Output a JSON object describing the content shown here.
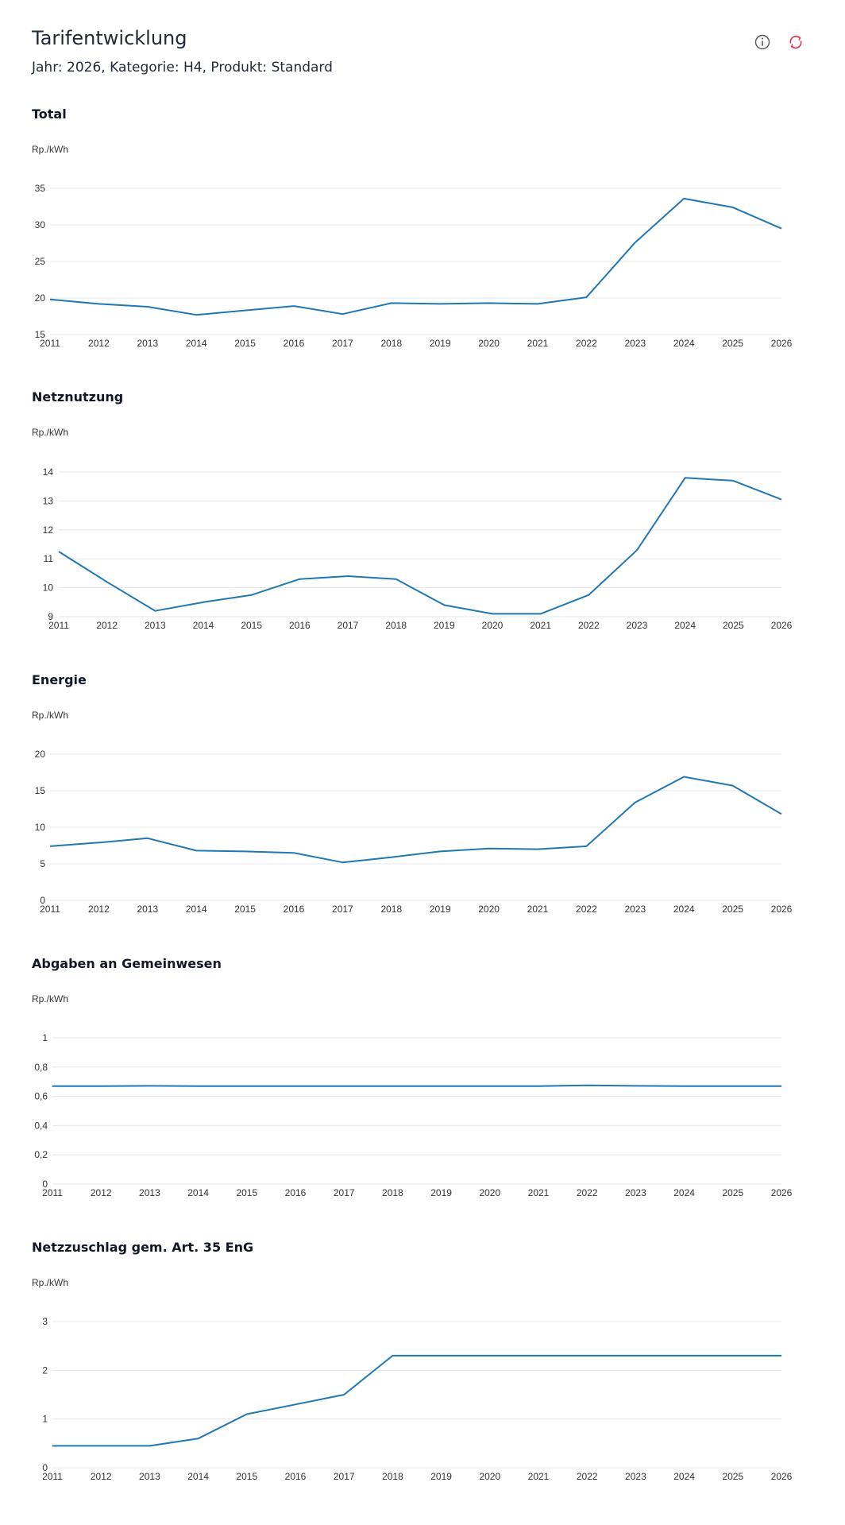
{
  "header": {
    "title": "Tarifentwicklung",
    "subtitle": "Jahr: 2026, Kategorie: H4, Produkt: Standard"
  },
  "toolbar": {
    "info_icon": "info-icon",
    "refresh_icon": "refresh-icon",
    "refresh_color": "#e0334d"
  },
  "colors": {
    "series": "#1f77b4",
    "grid": "#e5e7eb"
  },
  "chart_data": [
    {
      "type": "line",
      "title": "Total",
      "ylabel": "Rp./kWh",
      "xlabel": "",
      "x": [
        "2011",
        "2012",
        "2013",
        "2014",
        "2015",
        "2016",
        "2017",
        "2018",
        "2019",
        "2020",
        "2021",
        "2022",
        "2023",
        "2024",
        "2025",
        "2026"
      ],
      "values": [
        19.8,
        19.2,
        18.8,
        17.7,
        18.3,
        18.9,
        17.8,
        19.3,
        19.2,
        19.3,
        19.2,
        20.1,
        27.6,
        33.6,
        32.4,
        29.5
      ],
      "ylim": [
        15,
        35
      ],
      "yticks": [
        "15",
        "20",
        "25",
        "30",
        "35"
      ],
      "ytick_values": [
        15,
        20,
        25,
        30,
        35
      ],
      "grid": true
    },
    {
      "type": "line",
      "title": "Netznutzung",
      "ylabel": "Rp./kWh",
      "xlabel": "",
      "x": [
        "2011",
        "2012",
        "2013",
        "2014",
        "2015",
        "2016",
        "2017",
        "2018",
        "2019",
        "2020",
        "2021",
        "2022",
        "2023",
        "2024",
        "2025",
        "2026"
      ],
      "values": [
        11.25,
        10.2,
        9.2,
        9.5,
        9.75,
        10.3,
        10.4,
        10.3,
        9.4,
        9.1,
        9.1,
        9.75,
        11.3,
        13.8,
        13.7,
        13.05
      ],
      "ylim": [
        9,
        14
      ],
      "yticks": [
        "9",
        "10",
        "11",
        "12",
        "13",
        "14"
      ],
      "ytick_values": [
        9,
        10,
        11,
        12,
        13,
        14
      ],
      "grid": true
    },
    {
      "type": "line",
      "title": "Energie",
      "ylabel": "Rp./kWh",
      "xlabel": "",
      "x": [
        "2011",
        "2012",
        "2013",
        "2014",
        "2015",
        "2016",
        "2017",
        "2018",
        "2019",
        "2020",
        "2021",
        "2022",
        "2023",
        "2024",
        "2025",
        "2026"
      ],
      "values": [
        7.4,
        7.9,
        8.5,
        6.8,
        6.7,
        6.5,
        5.2,
        5.9,
        6.7,
        7.1,
        7.0,
        7.4,
        13.4,
        16.9,
        15.7,
        11.8
      ],
      "ylim": [
        0,
        20
      ],
      "yticks": [
        "0",
        "5",
        "10",
        "15",
        "20"
      ],
      "ytick_values": [
        0,
        5,
        10,
        15,
        20
      ],
      "grid": true
    },
    {
      "type": "line",
      "title": "Abgaben an Gemeinwesen",
      "ylabel": "Rp./kWh",
      "xlabel": "",
      "x": [
        "2011",
        "2012",
        "2013",
        "2014",
        "2015",
        "2016",
        "2017",
        "2018",
        "2019",
        "2020",
        "2021",
        "2022",
        "2023",
        "2024",
        "2025",
        "2026"
      ],
      "values": [
        0.67,
        0.67,
        0.672,
        0.67,
        0.67,
        0.67,
        0.67,
        0.67,
        0.67,
        0.67,
        0.67,
        0.675,
        0.672,
        0.67,
        0.67,
        0.67
      ],
      "ylim": [
        0,
        1
      ],
      "yticks": [
        "0",
        "0,2",
        "0,4",
        "0,6",
        "0,8",
        "1"
      ],
      "ytick_values": [
        0,
        0.2,
        0.4,
        0.6,
        0.8,
        1
      ],
      "grid": true
    },
    {
      "type": "line",
      "title": "Netzzuschlag gem. Art. 35 EnG",
      "ylabel": "Rp./kWh",
      "xlabel": "",
      "x": [
        "2011",
        "2012",
        "2013",
        "2014",
        "2015",
        "2016",
        "2017",
        "2018",
        "2019",
        "2020",
        "2021",
        "2022",
        "2023",
        "2024",
        "2025",
        "2026"
      ],
      "values": [
        0.45,
        0.45,
        0.45,
        0.6,
        1.1,
        1.3,
        1.5,
        2.3,
        2.3,
        2.3,
        2.3,
        2.3,
        2.3,
        2.3,
        2.3,
        2.3
      ],
      "ylim": [
        0,
        3
      ],
      "yticks": [
        "0",
        "1",
        "2",
        "3"
      ],
      "ytick_values": [
        0,
        1,
        2,
        3
      ],
      "grid": true
    }
  ]
}
